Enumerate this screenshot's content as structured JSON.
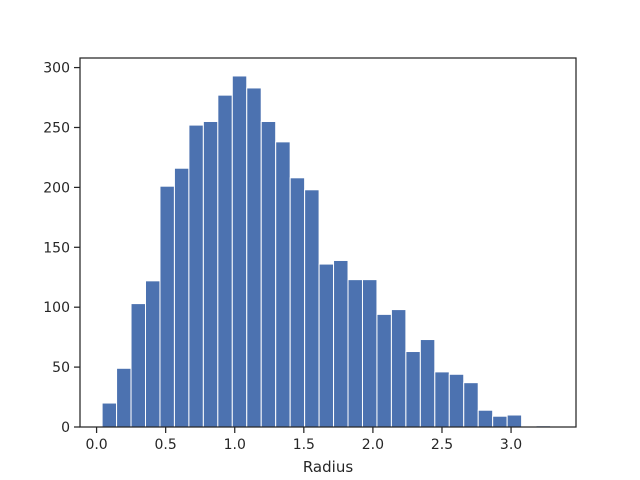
{
  "chart_data": {
    "type": "bar",
    "subtype": "histogram",
    "title": "",
    "xlabel": "Radius",
    "ylabel": "",
    "xlim": [
      -0.12,
      3.47
    ],
    "ylim": [
      0,
      308
    ],
    "xticks": [
      0.0,
      0.5,
      1.0,
      1.5,
      2.0,
      2.5,
      3.0
    ],
    "xtick_labels": [
      "0.0",
      "0.5",
      "1.0",
      "1.5",
      "2.0",
      "2.5",
      "3.0"
    ],
    "yticks": [
      0,
      50,
      100,
      150,
      200,
      250,
      300
    ],
    "ytick_labels": [
      "0",
      "50",
      "100",
      "150",
      "200",
      "250",
      "300"
    ],
    "bin_start": 0.04,
    "bin_width": 0.1047,
    "values": [
      20,
      49,
      103,
      122,
      201,
      216,
      252,
      255,
      277,
      293,
      283,
      255,
      238,
      208,
      198,
      136,
      139,
      123,
      123,
      94,
      98,
      63,
      73,
      46,
      44,
      37,
      14,
      9,
      10,
      0,
      1
    ],
    "grid": false,
    "legend": "none",
    "bar_color": "#4c72b0",
    "bar_edge_color": "#ffffff"
  }
}
